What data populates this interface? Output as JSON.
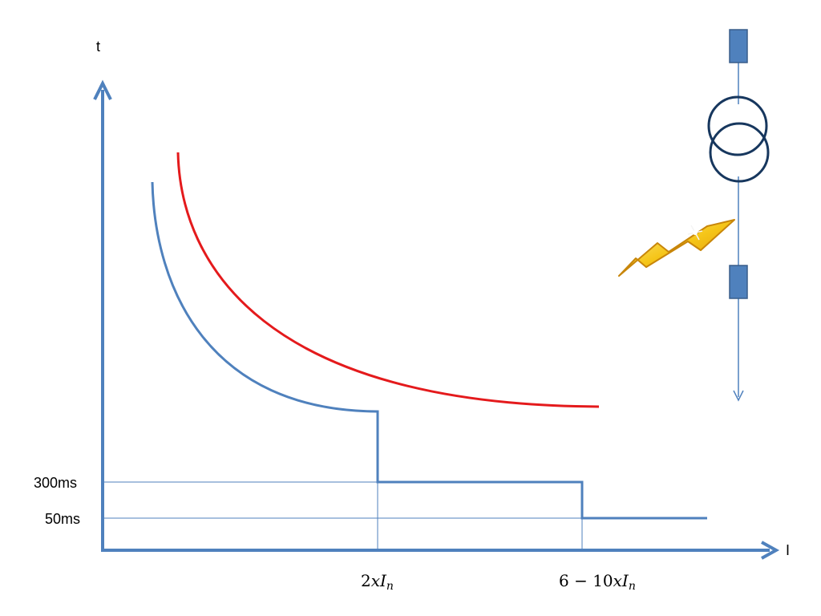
{
  "axes": {
    "y_label": "t",
    "x_label": "I"
  },
  "y_ticks": [
    "300ms",
    "50ms"
  ],
  "x_ticks": {
    "two": {
      "lead": "2",
      "var": "xI",
      "sub": "n"
    },
    "six_ten": {
      "lead": "6 − 10",
      "var": "xI",
      "sub": "n"
    }
  },
  "colors": {
    "axis": "#4f81bd",
    "relay_curve": "#4f81bd",
    "damage_curve": "#e41a1c",
    "guide_line": "#4f81bd",
    "device_box": "#4f81bd",
    "transformer": "#17375e",
    "lightning_fill": "#f5c518",
    "lightning_edge": "#c8860a"
  },
  "icons": [
    "transformer-icon",
    "breaker-icon",
    "lightning-fault-icon"
  ]
}
